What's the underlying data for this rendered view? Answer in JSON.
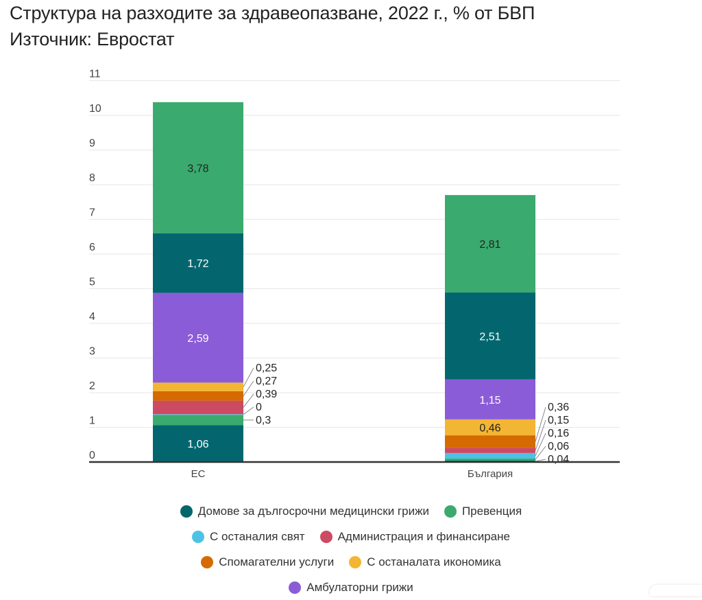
{
  "chart_data": {
    "type": "bar",
    "stacked": true,
    "title": "Структура на разходите за здравеопазване, 2022 г., % от БВП",
    "subtitle": "Източник: Евростат",
    "categories": [
      "ЕС",
      "България"
    ],
    "ylim": [
      0,
      11
    ],
    "yticks": [
      0,
      1,
      2,
      3,
      4,
      5,
      6,
      7,
      8,
      9,
      10,
      11
    ],
    "grid": true,
    "legend_position": "bottom",
    "series": [
      {
        "name": "Домове за дългосрочни медицински грижи",
        "color": "#03666f",
        "values": [
          1.06,
          0.04
        ],
        "labels": [
          "1,06",
          "0,04"
        ],
        "label_color": [
          "#fff",
          "#222"
        ]
      },
      {
        "name": "Превенция",
        "color": "#3aaa6e",
        "values": [
          0.3,
          0.06
        ],
        "labels": [
          "0,3",
          "0,06"
        ],
        "label_color": [
          "#222",
          "#222"
        ]
      },
      {
        "name": "С останалия свят",
        "color": "#4dc3e4",
        "values": [
          0.02,
          0.16
        ],
        "labels": [
          "0",
          "0,16"
        ],
        "label_color": [
          "#222",
          "#222"
        ]
      },
      {
        "name": "Администрация и финансиране",
        "color": "#cc4a62",
        "values": [
          0.39,
          0.15
        ],
        "labels": [
          "0,39",
          "0,15"
        ],
        "label_color": [
          "#fff",
          "#fff"
        ]
      },
      {
        "name": "Спомагателни услуги",
        "color": "#d46a00",
        "values": [
          0.27,
          0.36
        ],
        "labels": [
          "0,27",
          "0,36"
        ],
        "label_color": [
          "#fff",
          "#fff"
        ]
      },
      {
        "name": "С останалата икономика",
        "color": "#f3b634",
        "values": [
          0.25,
          0.46
        ],
        "labels": [
          "0,25",
          "0,46"
        ],
        "label_color": [
          "#222",
          "#222"
        ]
      },
      {
        "name": "Амбулаторни грижи",
        "color": "#8b5cd8",
        "values": [
          2.59,
          1.15
        ],
        "labels": [
          "2,59",
          "1,15"
        ],
        "label_color": [
          "#fff",
          "#fff"
        ]
      },
      {
        "name": null,
        "color": "#03666f",
        "values": [
          1.72,
          2.51
        ],
        "labels": [
          "1,72",
          "2,51"
        ],
        "label_color": [
          "#fff",
          "#fff"
        ]
      },
      {
        "name": null,
        "color": "#3aaa6e",
        "values": [
          3.78,
          2.81
        ],
        "labels": [
          "3,78",
          "2,81"
        ],
        "label_color": [
          "#222",
          "#222"
        ]
      }
    ]
  },
  "legend_rows": [
    [
      0,
      1
    ],
    [
      2,
      3
    ],
    [
      4,
      5
    ],
    [
      6
    ]
  ]
}
